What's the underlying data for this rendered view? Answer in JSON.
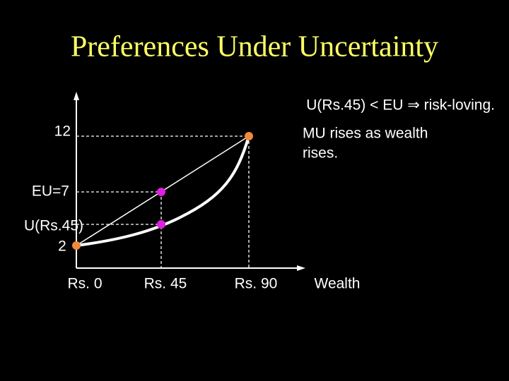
{
  "header": {
    "title": "Preferences Under Uncertainty"
  },
  "annotation": "U(Rs.45) < EU ⇒ risk-loving.",
  "note": [
    "MU rises as wealth",
    "rises."
  ],
  "y_labels": {
    "top": "12",
    "eu": "EU=7",
    "u45": [
      "U(Rs.45)",
      "2"
    ]
  },
  "x_labels": [
    "Rs. 0",
    "Rs. 45",
    "Rs. 90",
    "Wealth"
  ]
}
